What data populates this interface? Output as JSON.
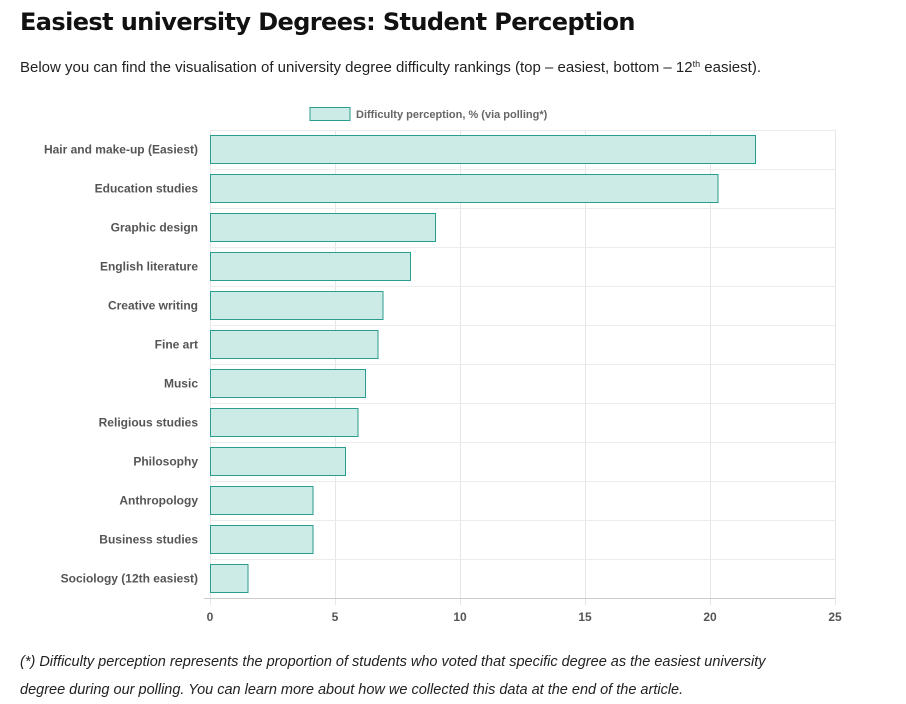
{
  "page": {
    "title": "Easiest university Degrees: Student Perception",
    "intro": {
      "before": "Below you can find the visualisation of university degree difficulty rankings (top – easiest, bottom – 12",
      "superscript": "th",
      "after": " easiest)."
    },
    "footnote_line1": "(*) Difficulty perception represents the proportion of students who voted that specific degree as the easiest university",
    "footnote_line2": "degree during our polling. You can learn more about how we collected this data at the end of the article."
  },
  "chart_data": {
    "type": "bar",
    "orientation": "horizontal",
    "categories": [
      "Hair and make-up (Easiest)",
      "Education studies",
      "Graphic design",
      "English literature",
      "Creative writing",
      "Fine art",
      "Music",
      "Religious studies",
      "Philosophy",
      "Anthropology",
      "Business studies",
      "Sociology (12th easiest)"
    ],
    "series": [
      {
        "name": "Difficulty perception, % (via polling*)",
        "values": [
          21.8,
          20.3,
          9.0,
          8.0,
          6.9,
          6.7,
          6.2,
          5.9,
          5.4,
          4.1,
          4.1,
          1.5
        ]
      }
    ],
    "xlim": [
      0,
      25
    ],
    "xticks": [
      0,
      5,
      10,
      15,
      20,
      25
    ],
    "grid": true,
    "legend": "top",
    "colors": {
      "bar_fill": "#cdebe6",
      "bar_stroke": "#2a9d8f"
    }
  }
}
